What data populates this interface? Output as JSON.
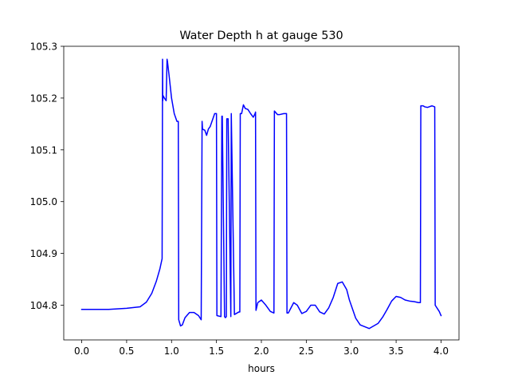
{
  "chart_data": {
    "type": "line",
    "title": "Water Depth h at gauge 530",
    "xlabel": "hours",
    "ylabel": "",
    "xlim": [
      -0.2,
      4.2
    ],
    "ylim": [
      104.733,
      105.3
    ],
    "xticks": [
      0.0,
      0.5,
      1.0,
      1.5,
      2.0,
      2.5,
      3.0,
      3.5,
      4.0
    ],
    "xtick_labels": [
      "0.0",
      "0.5",
      "1.0",
      "1.5",
      "2.0",
      "2.5",
      "3.0",
      "3.5",
      "4.0"
    ],
    "yticks": [
      104.8,
      104.9,
      105.0,
      105.1,
      105.2,
      105.3
    ],
    "ytick_labels": [
      "104.8",
      "104.9",
      "105.0",
      "105.1",
      "105.2",
      "105.3"
    ],
    "grid": false,
    "line_color": "#0000ff",
    "series": [
      {
        "x": [
          0.0,
          0.3,
          0.5,
          0.65,
          0.72,
          0.78,
          0.83,
          0.87,
          0.895,
          0.9,
          0.902,
          0.905,
          0.92,
          0.94,
          0.95,
          0.955,
          0.975,
          1.0,
          1.03,
          1.06,
          1.075,
          1.08,
          1.1,
          1.12,
          1.15,
          1.2,
          1.25,
          1.3,
          1.33,
          1.34,
          1.345,
          1.37,
          1.39,
          1.41,
          1.43,
          1.45,
          1.48,
          1.5,
          1.505,
          1.55,
          1.56,
          1.565,
          1.59,
          1.6,
          1.61,
          1.615,
          1.63,
          1.66,
          1.665,
          1.7,
          1.75,
          1.76,
          1.765,
          1.78,
          1.8,
          1.82,
          1.85,
          1.88,
          1.91,
          1.93,
          1.935,
          1.94,
          1.96,
          2.0,
          2.05,
          2.1,
          2.14,
          2.145,
          2.18,
          2.2,
          2.25,
          2.28,
          2.285,
          2.3,
          2.33,
          2.36,
          2.4,
          2.45,
          2.5,
          2.55,
          2.6,
          2.65,
          2.7,
          2.75,
          2.8,
          2.85,
          2.9,
          2.95,
          2.98,
          3.0,
          3.05,
          3.1,
          3.2,
          3.3,
          3.35,
          3.4,
          3.45,
          3.5,
          3.55,
          3.6,
          3.65,
          3.7,
          3.75,
          3.77,
          3.775,
          3.8,
          3.82,
          3.85,
          3.9,
          3.93,
          3.935,
          3.98,
          4.0
        ],
        "y": [
          104.792,
          104.792,
          104.794,
          104.797,
          104.806,
          104.823,
          104.846,
          104.87,
          104.89,
          105.275,
          105.195,
          105.205,
          105.2,
          105.195,
          105.275,
          105.27,
          105.24,
          105.2,
          105.17,
          105.155,
          105.155,
          104.772,
          104.76,
          104.762,
          104.776,
          104.786,
          104.786,
          104.78,
          104.772,
          105.155,
          105.14,
          105.138,
          105.128,
          105.14,
          105.145,
          105.155,
          105.17,
          105.17,
          104.78,
          104.778,
          105.165,
          105.165,
          104.778,
          104.776,
          104.778,
          105.16,
          105.16,
          104.778,
          105.17,
          104.782,
          104.787,
          104.787,
          105.17,
          105.17,
          105.187,
          105.18,
          105.178,
          105.17,
          105.163,
          105.17,
          105.173,
          104.79,
          104.805,
          104.81,
          104.8,
          104.788,
          104.785,
          105.175,
          105.168,
          105.168,
          105.17,
          105.17,
          104.785,
          104.785,
          104.795,
          104.805,
          104.8,
          104.784,
          104.788,
          104.8,
          104.8,
          104.787,
          104.783,
          104.795,
          104.815,
          104.842,
          104.845,
          104.83,
          104.81,
          104.8,
          104.775,
          104.762,
          104.755,
          104.765,
          104.777,
          104.792,
          104.808,
          104.817,
          104.815,
          104.81,
          104.808,
          104.807,
          104.805,
          104.805,
          105.185,
          105.185,
          105.183,
          105.182,
          105.185,
          105.183,
          104.8,
          104.788,
          104.78
        ]
      }
    ]
  }
}
